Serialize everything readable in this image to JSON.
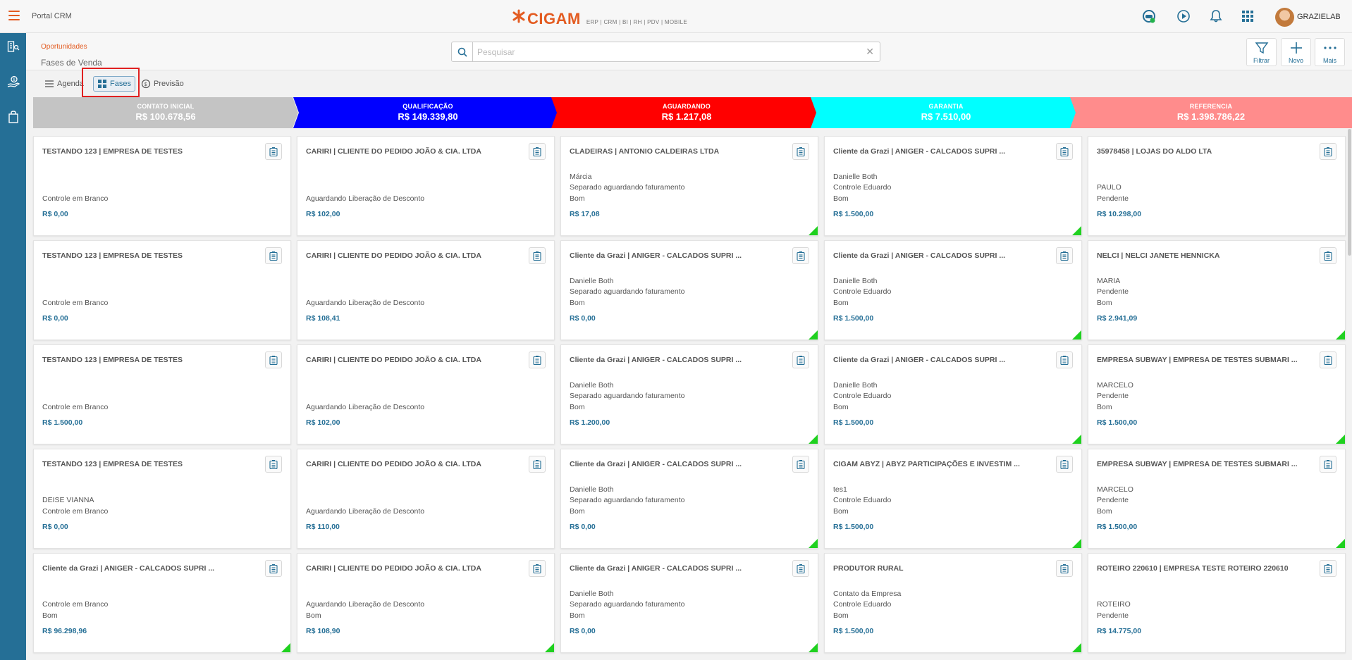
{
  "topbar": {
    "portal_title": "Portal CRM",
    "logo_text": "CIGAM",
    "logo_sub": "ERP | CRM | BI | RH | PDV | MOBILE",
    "user_name": "GRAZIELAB"
  },
  "subheader": {
    "breadcrumb": "Oportunidades",
    "title": "Fases de Venda",
    "search_placeholder": "Pesquisar",
    "actions": {
      "filter": "Filtrar",
      "new": "Novo",
      "more": "Mais"
    }
  },
  "tabs": {
    "agenda": "Agenda",
    "fases": "Fases",
    "previsao": "Previsão"
  },
  "phases": [
    {
      "name": "CONTATO INICIAL",
      "value": "R$ 100.678,56",
      "color": "#c4c4c4"
    },
    {
      "name": "QUALIFICAÇÃO",
      "value": "R$ 149.339,80",
      "color": "#0000ff"
    },
    {
      "name": "AGUARDANDO",
      "value": "R$ 1.217,08",
      "color": "#ff0000"
    },
    {
      "name": "GARANTIA",
      "value": "R$ 7.510,00",
      "color": "#00ffff"
    },
    {
      "name": "REFERENCIA",
      "value": "R$ 1.398.786,22",
      "color": "#ff8c8c"
    }
  ],
  "columns": [
    {
      "cards": [
        {
          "title": "TESTANDO 123 | EMPRESA DE TESTES",
          "lines": [
            "Controle em Branco"
          ],
          "value": "R$ 0,00",
          "flag": false
        },
        {
          "title": "TESTANDO 123 | EMPRESA DE TESTES",
          "lines": [
            "Controle em Branco"
          ],
          "value": "R$ 0,00",
          "flag": false
        },
        {
          "title": "TESTANDO 123 | EMPRESA DE TESTES",
          "lines": [
            "Controle em Branco"
          ],
          "value": "R$ 1.500,00",
          "flag": false
        },
        {
          "title": "TESTANDO 123 | EMPRESA DE TESTES",
          "lines": [
            "DEISE VIANNA",
            "Controle em Branco"
          ],
          "value": "R$ 0,00",
          "flag": false
        },
        {
          "title": "Cliente da Grazi | ANIGER - CALCADOS SUPRI ...",
          "lines": [
            "Controle em Branco",
            "Bom"
          ],
          "value": "R$ 96.298,96",
          "flag": true
        }
      ]
    },
    {
      "cards": [
        {
          "title": "CARIRI | CLIENTE DO PEDIDO JOÃO & CIA. LTDA",
          "lines": [
            "Aguardando Liberação de Desconto"
          ],
          "value": "R$ 102,00",
          "flag": false
        },
        {
          "title": "CARIRI | CLIENTE DO PEDIDO JOÃO & CIA. LTDA",
          "lines": [
            "Aguardando Liberação de Desconto"
          ],
          "value": "R$ 108,41",
          "flag": false
        },
        {
          "title": "CARIRI | CLIENTE DO PEDIDO JOÃO & CIA. LTDA",
          "lines": [
            "Aguardando Liberação de Desconto"
          ],
          "value": "R$ 102,00",
          "flag": false
        },
        {
          "title": "CARIRI | CLIENTE DO PEDIDO JOÃO & CIA. LTDA",
          "lines": [
            "Aguardando Liberação de Desconto"
          ],
          "value": "R$ 110,00",
          "flag": false
        },
        {
          "title": "CARIRI | CLIENTE DO PEDIDO JOÃO & CIA. LTDA",
          "lines": [
            "Aguardando Liberação de Desconto",
            "Bom"
          ],
          "value": "R$ 108,90",
          "flag": true
        }
      ]
    },
    {
      "cards": [
        {
          "title": "CLADEIRAS | ANTONIO CALDEIRAS LTDA",
          "lines": [
            "Márcia",
            "Separado aguardando faturamento",
            "Bom"
          ],
          "value": "R$ 17,08",
          "flag": true
        },
        {
          "title": "Cliente da Grazi | ANIGER - CALCADOS SUPRI ...",
          "lines": [
            "Danielle Both",
            "Separado aguardando faturamento",
            "Bom"
          ],
          "value": "R$ 0,00",
          "flag": true
        },
        {
          "title": "Cliente da Grazi | ANIGER - CALCADOS SUPRI ...",
          "lines": [
            "Danielle Both",
            "Separado aguardando faturamento",
            "Bom"
          ],
          "value": "R$ 1.200,00",
          "flag": true
        },
        {
          "title": "Cliente da Grazi | ANIGER - CALCADOS SUPRI ...",
          "lines": [
            "Danielle Both",
            "Separado aguardando faturamento",
            "Bom"
          ],
          "value": "R$ 0,00",
          "flag": true
        },
        {
          "title": "Cliente da Grazi | ANIGER - CALCADOS SUPRI ...",
          "lines": [
            "Danielle Both",
            "Separado aguardando faturamento",
            "Bom"
          ],
          "value": "R$ 0,00",
          "flag": true
        }
      ]
    },
    {
      "cards": [
        {
          "title": "Cliente da Grazi | ANIGER - CALCADOS SUPRI ...",
          "lines": [
            "Danielle Both",
            "Controle Eduardo",
            "Bom"
          ],
          "value": "R$ 1.500,00",
          "flag": true
        },
        {
          "title": "Cliente da Grazi | ANIGER - CALCADOS SUPRI ...",
          "lines": [
            "Danielle Both",
            "Controle Eduardo",
            "Bom"
          ],
          "value": "R$ 1.500,00",
          "flag": true
        },
        {
          "title": "Cliente da Grazi | ANIGER - CALCADOS SUPRI ...",
          "lines": [
            "Danielle Both",
            "Controle Eduardo",
            "Bom"
          ],
          "value": "R$ 1.500,00",
          "flag": true
        },
        {
          "title": "CIGAM ABYZ | ABYZ PARTICIPAÇÕES E INVESTIM ...",
          "lines": [
            "tes1",
            "Controle Eduardo",
            "Bom"
          ],
          "value": "R$ 1.500,00",
          "flag": true
        },
        {
          "title": "PRODUTOR RURAL",
          "lines": [
            "Contato da Empresa",
            "Controle Eduardo",
            "Bom"
          ],
          "value": "R$ 1.500,00",
          "flag": true
        }
      ]
    },
    {
      "cards": [
        {
          "title": "35978458 | LOJAS DO ALDO LTA",
          "lines": [
            "PAULO",
            "Pendente"
          ],
          "value": "R$ 10.298,00",
          "flag": false
        },
        {
          "title": "NELCI | NELCI JANETE HENNICKA",
          "lines": [
            "MARIA",
            "Pendente",
            "Bom"
          ],
          "value": "R$ 2.941,09",
          "flag": true
        },
        {
          "title": "EMPRESA SUBWAY | EMPRESA DE TESTES SUBMARI ...",
          "lines": [
            "MARCELO",
            "Pendente",
            "Bom"
          ],
          "value": "R$ 1.500,00",
          "flag": true
        },
        {
          "title": "EMPRESA SUBWAY | EMPRESA DE TESTES SUBMARI ...",
          "lines": [
            "MARCELO",
            "Pendente",
            "Bom"
          ],
          "value": "R$ 1.500,00",
          "flag": true
        },
        {
          "title": "ROTEIRO 220610 | EMPRESA TESTE ROTEIRO 220610",
          "lines": [
            "ROTEIRO",
            "Pendente"
          ],
          "value": "R$ 14.775,00",
          "flag": false
        }
      ]
    }
  ]
}
